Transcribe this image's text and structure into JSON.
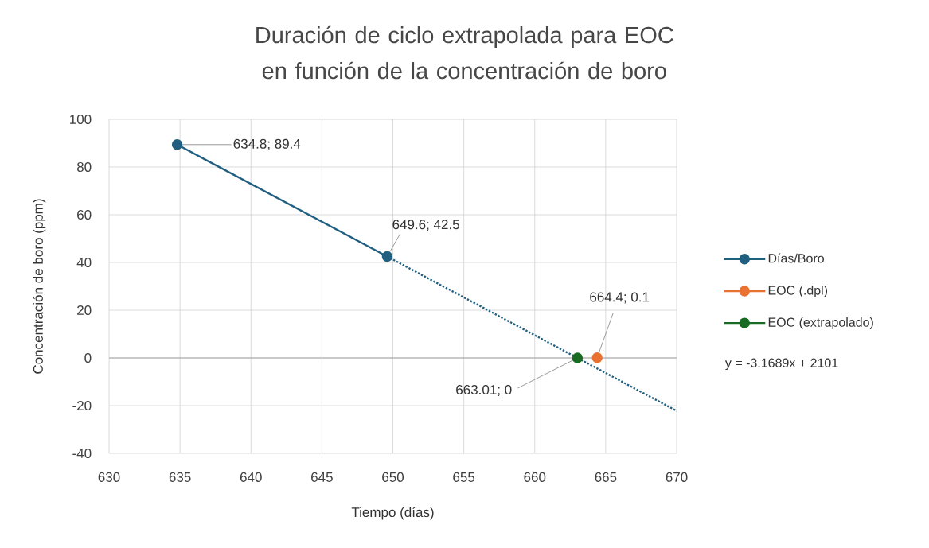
{
  "chart_data": {
    "type": "line",
    "title": "Duración de ciclo extrapolada para EOC en función de la concentración de boro",
    "xlabel": "Tiempo (días)",
    "ylabel": "Concentración de boro (ppm)",
    "xlim": [
      630,
      670
    ],
    "xticks": [
      630,
      635,
      640,
      645,
      650,
      655,
      660,
      665,
      670
    ],
    "ylim": [
      -40,
      100
    ],
    "yticks": [
      -40,
      -20,
      0,
      20,
      40,
      60,
      80,
      100
    ],
    "grid": true,
    "legend": "right",
    "annotations": [
      "y = -3.1689x + 2101"
    ],
    "series": [
      {
        "line_style": "dotted",
        "color": "#215f80",
        "x": [
          649.6,
          670
        ],
        "values": [
          42.5,
          -22.2
        ]
      },
      {
        "name": "Días/Boro",
        "marker": "circle",
        "color": "#215f80",
        "x": [
          634.8,
          649.6
        ],
        "values": [
          89.4,
          42.5
        ],
        "value_labels": [
          "634.8; 89.4",
          "649.6; 42.5"
        ]
      },
      {
        "name": "EOC (.dpl)",
        "marker": "circle",
        "color": "#e97132",
        "x": [
          664.4
        ],
        "values": [
          0.1
        ],
        "value_labels": [
          "664.4; 0.1"
        ]
      },
      {
        "name": "EOC (extrapolado)",
        "marker": "circle",
        "color": "#196b24",
        "x": [
          663.01
        ],
        "values": [
          0
        ],
        "value_labels": [
          "663.01; 0"
        ]
      }
    ]
  }
}
